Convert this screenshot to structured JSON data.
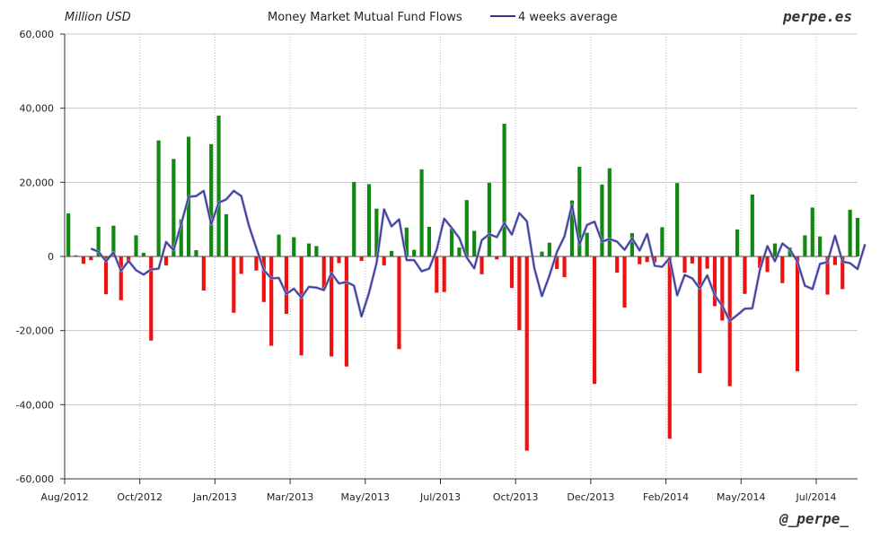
{
  "chart_data": {
    "type": "bar",
    "title": "Money Market Mutual Fund Flows",
    "ylabel": "Million USD",
    "brand": "perpe.es",
    "handle": "@_perpe_",
    "ylim": [
      -60000,
      60000
    ],
    "yticks": [
      60000,
      40000,
      20000,
      0,
      -20000,
      -40000,
      -60000
    ],
    "ytick_labels": [
      "60,000",
      "40,000",
      "20,000",
      "0",
      "-20,000",
      "-40,000",
      "-60,000"
    ],
    "xticks": [
      {
        "label": "Aug/2012",
        "index": 0
      },
      {
        "label": "Oct/2012",
        "index": 10
      },
      {
        "label": "Jan/2013",
        "index": 20
      },
      {
        "label": "Mar/2013",
        "index": 30
      },
      {
        "label": "May/2013",
        "index": 40
      },
      {
        "label": "Jul/2013",
        "index": 50
      },
      {
        "label": "Oct/2013",
        "index": 60
      },
      {
        "label": "Dec/2013",
        "index": 70
      },
      {
        "label": "Feb/2014",
        "index": 80
      },
      {
        "label": "May/2014",
        "index": 90
      },
      {
        "label": "Jul/2014",
        "index": 100
      }
    ],
    "x_max_index": 105,
    "grid": true,
    "positive_color": "#118811",
    "negative_color": "#ee1111",
    "series": [
      {
        "kind": "bar",
        "values": [
          11600,
          300,
          -2000,
          -1000,
          8000,
          -10200,
          8300,
          -11800,
          -1400,
          5700,
          1000,
          -22700,
          31300,
          -2400,
          26300,
          10000,
          32300,
          1700,
          -9200,
          30300,
          38000,
          11400,
          -15200,
          -4700,
          0,
          -3800,
          -12300,
          -24100,
          5900,
          -15500,
          5200,
          -26700,
          3500,
          2800,
          -8700,
          -27000,
          -1800,
          -29700,
          20100,
          -1200,
          19500,
          12900,
          -2400,
          1500,
          -25000,
          7800,
          1800,
          23500,
          8000,
          -9800,
          -9600,
          7500,
          2400,
          15200,
          6900,
          -4800,
          19900,
          -800,
          35800,
          -8500,
          -19900,
          -52400,
          0,
          1300,
          3700,
          -3400,
          -5600,
          15100,
          24200,
          6400,
          -34400,
          19400,
          23800,
          -4400,
          -13800,
          6300,
          -2100,
          -1500,
          -1600,
          7900,
          -49200,
          19800,
          -4400,
          -1900,
          -31500,
          -3300,
          -13400,
          -17300,
          -35000,
          7300,
          -10100,
          16700,
          -3100,
          -4200,
          3500,
          -7200,
          2400,
          -31000,
          5700,
          13200,
          5400,
          -10300,
          -2300,
          -8800,
          12600,
          10400
        ]
      },
      {
        "name": "4 weeks average",
        "kind": "line",
        "color": "#333399",
        "start_index": 3,
        "values": [
          2100,
          1300,
          -1300,
          1100,
          -3900,
          -1200,
          -3700,
          -4900,
          -3500,
          -3300,
          3900,
          1700,
          8700,
          16100,
          16300,
          17700,
          8700,
          14500,
          15400,
          17700,
          16300,
          8400,
          2300,
          -3700,
          -5900,
          -5800,
          -10100,
          -8700,
          -11100,
          -8200,
          -8400,
          -9100,
          -4500,
          -7300,
          -6900,
          -7900,
          -16200,
          -9800,
          -1800,
          12700,
          8100,
          10000,
          -1000,
          -1000,
          -4000,
          -3300,
          1800,
          10200,
          7700,
          5000,
          -300,
          -3200,
          4400,
          6000,
          5200,
          9000,
          5900,
          11700,
          9500,
          -3200,
          -10700,
          -5200,
          1200,
          5400,
          13900,
          3200,
          8500,
          9400,
          4000,
          4700,
          4000,
          1800,
          4900,
          1600,
          6100,
          -2500,
          -2800,
          -400,
          -10500,
          -5000,
          -5900,
          -8600,
          -5100,
          -10500,
          -13300,
          -17400,
          -15800,
          -14100,
          -14000,
          -3700,
          2800,
          -1300,
          3500,
          1900,
          -1400,
          -7900,
          -8800,
          -2000,
          -1500,
          5600,
          -1400,
          -1800,
          -3400,
          3300
        ]
      }
    ]
  }
}
